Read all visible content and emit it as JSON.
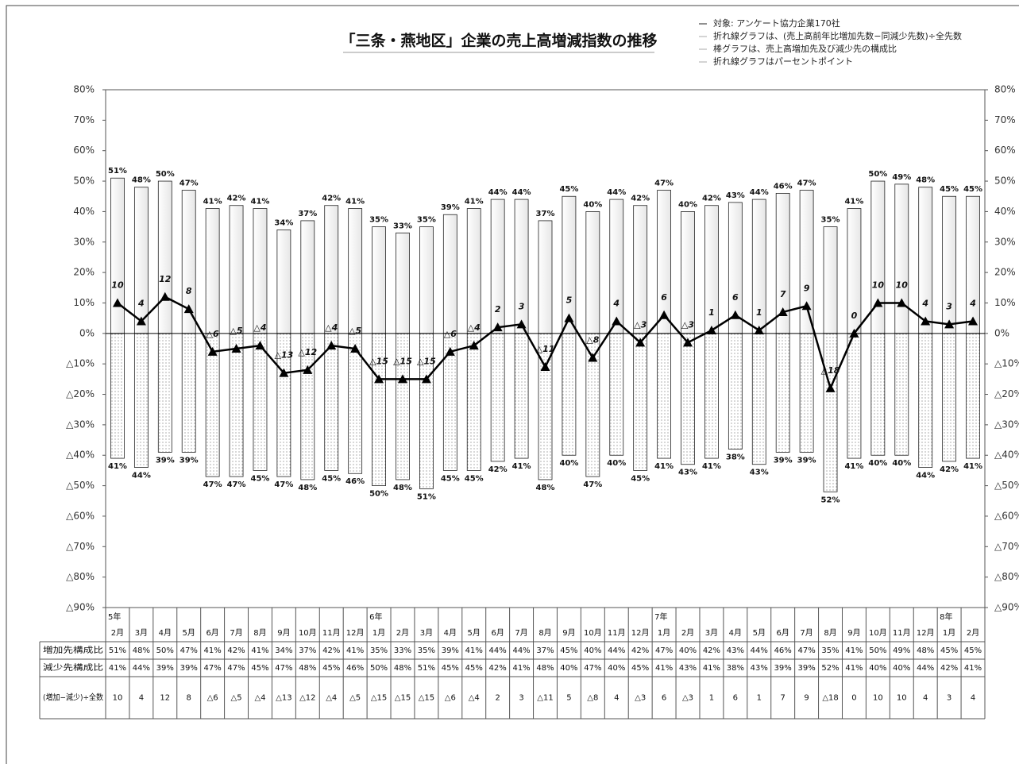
{
  "chart_data": {
    "type": "bar-line",
    "title": "「三条・燕地区」企業の売上高増減指数の推移",
    "notes": [
      "対象: アンケート協力企業170社",
      "折れ線グラフは、(売上高前年比増加先数−同減少先数)÷全先数",
      "棒グラフは、売上高増加先及び減少先の構成比",
      "折れ線グラフはパーセントポイント"
    ],
    "category_years": [
      "5年",
      null,
      null,
      null,
      null,
      null,
      null,
      null,
      null,
      null,
      null,
      "6年",
      null,
      null,
      null,
      null,
      null,
      null,
      null,
      null,
      null,
      null,
      null,
      "7年",
      null,
      null,
      null,
      null,
      null,
      null,
      null,
      null,
      null,
      null,
      null,
      "8年",
      null
    ],
    "categories": [
      "2月",
      "3月",
      "4月",
      "5月",
      "6月",
      "7月",
      "8月",
      "9月",
      "10月",
      "11月",
      "12月",
      "1月",
      "2月",
      "3月",
      "4月",
      "5月",
      "6月",
      "7月",
      "8月",
      "9月",
      "10月",
      "11月",
      "12月",
      "1月",
      "2月",
      "3月",
      "4月",
      "5月",
      "6月",
      "7月",
      "8月",
      "9月",
      "10月",
      "11月",
      "12月",
      "1月",
      "2月"
    ],
    "series": [
      {
        "name": "増加先構成比",
        "kind": "bar",
        "color": "#e6e6e6",
        "values": [
          51,
          48,
          50,
          47,
          41,
          42,
          41,
          34,
          37,
          42,
          41,
          35,
          33,
          35,
          39,
          41,
          44,
          44,
          37,
          45,
          40,
          44,
          42,
          47,
          40,
          42,
          43,
          44,
          46,
          47,
          35,
          41,
          50,
          49,
          48,
          45,
          45
        ],
        "value_labels": [
          "51%",
          "48%",
          "50%",
          "47%",
          "41%",
          "42%",
          "41%",
          "34%",
          "37%",
          "42%",
          "41%",
          "35%",
          "33%",
          "35%",
          "39%",
          "41%",
          "44%",
          "44%",
          "37%",
          "45%",
          "40%",
          "44%",
          "42%",
          "47%",
          "40%",
          "42%",
          "43%",
          "44%",
          "46%",
          "47%",
          "35%",
          "41%",
          "50%",
          "49%",
          "48%",
          "45%",
          "45%"
        ]
      },
      {
        "name": "減少先構成比",
        "kind": "bar",
        "color": "#777777",
        "values": [
          -41,
          -44,
          -39,
          -39,
          -47,
          -47,
          -45,
          -47,
          -48,
          -45,
          -46,
          -50,
          -48,
          -51,
          -45,
          -45,
          -42,
          -41,
          -48,
          -40,
          -47,
          -40,
          -45,
          -41,
          -43,
          -41,
          -38,
          -43,
          -39,
          -39,
          -52,
          -41,
          -40,
          -40,
          -44,
          -42,
          -41
        ],
        "value_labels": [
          "41%",
          "44%",
          "39%",
          "39%",
          "47%",
          "47%",
          "45%",
          "47%",
          "48%",
          "45%",
          "46%",
          "50%",
          "48%",
          "51%",
          "45%",
          "45%",
          "42%",
          "41%",
          "48%",
          "40%",
          "47%",
          "40%",
          "45%",
          "41%",
          "43%",
          "41%",
          "38%",
          "43%",
          "39%",
          "39%",
          "52%",
          "41%",
          "40%",
          "40%",
          "44%",
          "42%",
          "41%"
        ]
      },
      {
        "name": "(増加−減少)÷全数",
        "kind": "line",
        "color": "#000000",
        "values": [
          10,
          4,
          12,
          8,
          -6,
          -5,
          -4,
          -13,
          -12,
          -4,
          -5,
          -15,
          -15,
          -15,
          -6,
          -4,
          2,
          3,
          -11,
          5,
          -8,
          4,
          -3,
          6,
          -3,
          1,
          6,
          1,
          7,
          9,
          -18,
          0,
          10,
          10,
          4,
          3,
          4
        ],
        "value_labels": [
          "10",
          "4",
          "12",
          "8",
          "△6",
          "△5",
          "△4",
          "△13",
          "△12",
          "△4",
          "△5",
          "△15",
          "△15",
          "△15",
          "△6",
          "△4",
          "2",
          "3",
          "△11",
          "5",
          "△8",
          "4",
          "△3",
          "6",
          "△3",
          "1",
          "6",
          "1",
          "7",
          "9",
          "△18",
          "0",
          "10",
          "10",
          "4",
          "3",
          "4"
        ]
      }
    ],
    "ylim": [
      -90,
      80
    ],
    "yticks": [
      {
        "value": 80,
        "label": "80%"
      },
      {
        "value": 70,
        "label": "70%"
      },
      {
        "value": 60,
        "label": "60%"
      },
      {
        "value": 50,
        "label": "50%"
      },
      {
        "value": 40,
        "label": "40%"
      },
      {
        "value": 30,
        "label": "30%"
      },
      {
        "value": 20,
        "label": "20%"
      },
      {
        "value": 10,
        "label": "10%"
      },
      {
        "value": 0,
        "label": "0%"
      },
      {
        "value": -10,
        "label": "△10%"
      },
      {
        "value": -20,
        "label": "△20%"
      },
      {
        "value": -30,
        "label": "△30%"
      },
      {
        "value": -40,
        "label": "△40%"
      },
      {
        "value": -50,
        "label": "△50%"
      },
      {
        "value": -60,
        "label": "△60%"
      },
      {
        "value": -70,
        "label": "△70%"
      },
      {
        "value": -80,
        "label": "△80%"
      },
      {
        "value": -90,
        "label": "△90%"
      }
    ],
    "grid": false
  }
}
